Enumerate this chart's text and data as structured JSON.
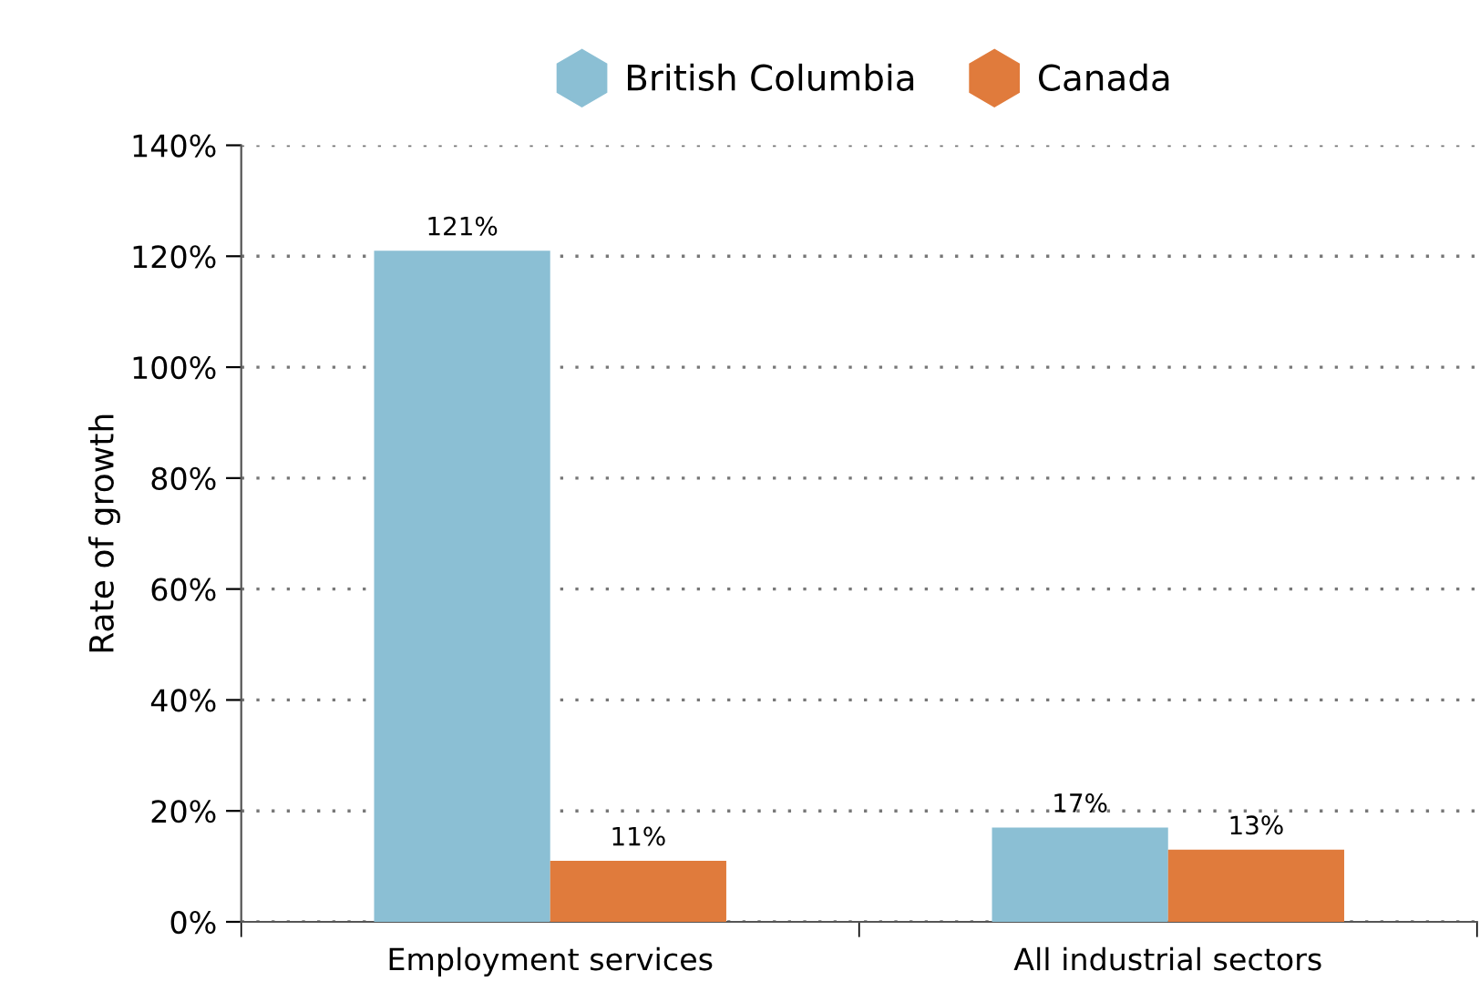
{
  "chart_data": {
    "type": "bar",
    "ylabel": "Rate of growth",
    "categories": [
      "Employment services",
      "All industrial sectors"
    ],
    "series": [
      {
        "name": "British Columbia",
        "color": "#8bbfd4",
        "values": [
          121,
          17
        ],
        "value_labels": [
          "121%",
          "17%"
        ]
      },
      {
        "name": "Canada",
        "color": "#e07b3c",
        "values": [
          11,
          13
        ],
        "value_labels": [
          "11%",
          "13%"
        ]
      }
    ],
    "ylim": [
      0,
      140
    ],
    "yticks": [
      {
        "value": 0,
        "label": "0%"
      },
      {
        "value": 20,
        "label": "20%"
      },
      {
        "value": 40,
        "label": "40%"
      },
      {
        "value": 60,
        "label": "60%"
      },
      {
        "value": 80,
        "label": "80%"
      },
      {
        "value": 100,
        "label": "100%"
      },
      {
        "value": 120,
        "label": "120%"
      },
      {
        "value": 140,
        "label": "140%"
      }
    ],
    "grid": "y",
    "legend": "top"
  }
}
